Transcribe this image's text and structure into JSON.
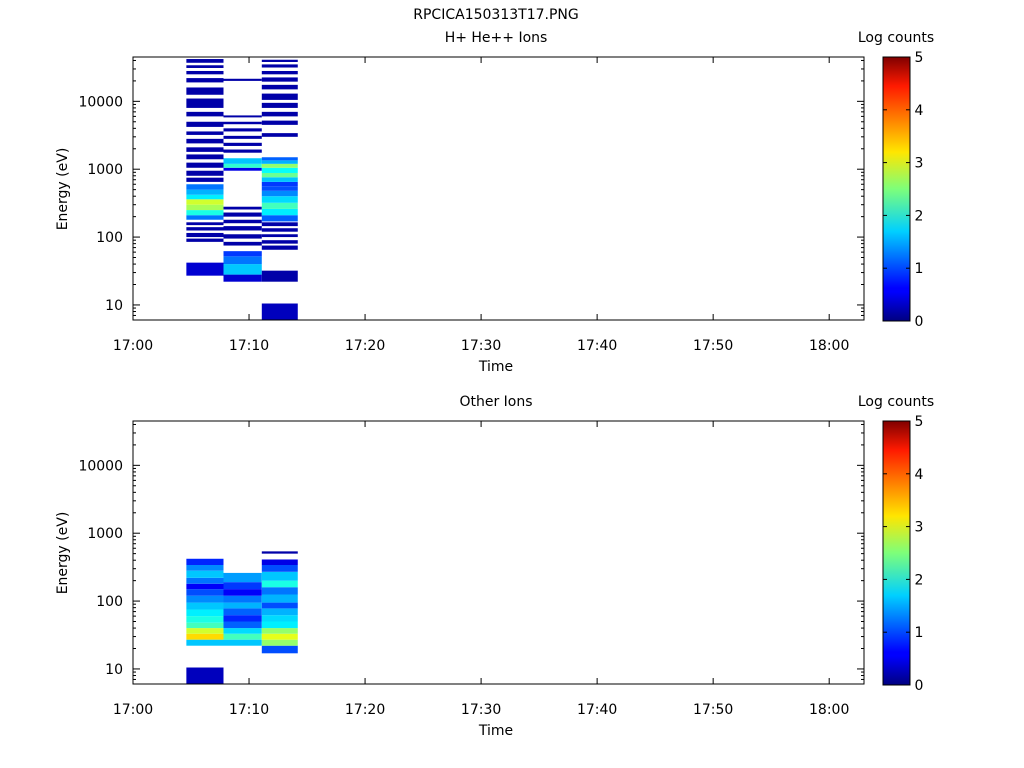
{
  "figure_title": "RPCICA150313T17.PNG",
  "chart_data": [
    {
      "type": "heatmap",
      "title": "H+ He++ Ions",
      "xlabel": "Time",
      "ylabel": "Energy (eV)",
      "x_ticks": [
        "17:00",
        "17:10",
        "17:20",
        "17:30",
        "17:40",
        "17:50",
        "18:00"
      ],
      "x_range": [
        "17:00",
        "18:03"
      ],
      "y_scale": "log",
      "y_ticks": [
        10,
        100,
        1000,
        10000
      ],
      "y_range": [
        6,
        45000
      ],
      "colorbar": {
        "label": "Log counts",
        "range": [
          0,
          5
        ],
        "ticks": [
          0,
          1,
          2,
          3,
          4,
          5
        ],
        "colormap": "jet"
      },
      "columns": [
        {
          "start": "17:04.6",
          "end": "17:07.8",
          "cells": [
            [
              27,
              42,
              0.4
            ],
            [
              85,
              95,
              0.2
            ],
            [
              100,
              115,
              0.2
            ],
            [
              125,
              140,
              0.2
            ],
            [
              150,
              165,
              0.2
            ],
            [
              180,
              210,
              1.2
            ],
            [
              210,
              250,
              2.0
            ],
            [
              250,
              300,
              2.7
            ],
            [
              300,
              360,
              2.9
            ],
            [
              360,
              420,
              1.8
            ],
            [
              420,
              500,
              1.5
            ],
            [
              500,
              600,
              1.2
            ],
            [
              650,
              750,
              0.2
            ],
            [
              800,
              950,
              0.2
            ],
            [
              1050,
              1250,
              0.2
            ],
            [
              1400,
              1650,
              0.2
            ],
            [
              1800,
              2100,
              0.2
            ],
            [
              2400,
              2800,
              0.2
            ],
            [
              3200,
              3600,
              0.2
            ],
            [
              4200,
              5000,
              0.2
            ],
            [
              6000,
              7000,
              0.2
            ],
            [
              8000,
              11000,
              0.2
            ],
            [
              12500,
              16000,
              0.2
            ],
            [
              19000,
              22000,
              0.2
            ],
            [
              25000,
              28000,
              0.2
            ],
            [
              31000,
              34000,
              0.2
            ],
            [
              37000,
              42000,
              0.2
            ]
          ]
        },
        {
          "start": "17:07.8",
          "end": "17:11.1",
          "cells": [
            [
              22,
              28,
              0.4
            ],
            [
              28,
              40,
              1.6
            ],
            [
              40,
              52,
              1.2
            ],
            [
              52,
              62,
              0.9
            ],
            [
              75,
              85,
              0.2
            ],
            [
              95,
              110,
              0.2
            ],
            [
              125,
              145,
              0.2
            ],
            [
              160,
              180,
              0.2
            ],
            [
              200,
              230,
              0.2
            ],
            [
              255,
              280,
              0.2
            ],
            [
              950,
              1050,
              0.5
            ],
            [
              1050,
              1200,
              2.1
            ],
            [
              1200,
              1450,
              1.6
            ],
            [
              1750,
              1950,
              0.2
            ],
            [
              2200,
              2450,
              0.2
            ],
            [
              2800,
              3100,
              0.2
            ],
            [
              3600,
              4000,
              0.2
            ],
            [
              4600,
              5000,
              0.2
            ],
            [
              5800,
              6200,
              0.2
            ],
            [
              20000,
              21500,
              0.2
            ]
          ]
        },
        {
          "start": "17:11.1",
          "end": "17:14.2",
          "cells": [
            [
              6,
              10.5,
              0.3
            ],
            [
              22,
              32,
              0.2
            ],
            [
              65,
              75,
              0.2
            ],
            [
              80,
              90,
              0.2
            ],
            [
              100,
              110,
              0.2
            ],
            [
              120,
              135,
              0.2
            ],
            [
              145,
              165,
              0.2
            ],
            [
              170,
              210,
              1.1
            ],
            [
              210,
              260,
              1.8
            ],
            [
              260,
              320,
              2.2
            ],
            [
              320,
              400,
              1.7
            ],
            [
              400,
              480,
              1.3
            ],
            [
              480,
              560,
              1.0
            ],
            [
              560,
              650,
              0.9
            ],
            [
              650,
              760,
              1.6
            ],
            [
              760,
              880,
              2.4
            ],
            [
              880,
              1050,
              1.9
            ],
            [
              1050,
              1200,
              2.6
            ],
            [
              1200,
              1350,
              1.5
            ],
            [
              1350,
              1500,
              1.1
            ],
            [
              3000,
              3400,
              0.2
            ],
            [
              4500,
              5200,
              0.2
            ],
            [
              6000,
              7000,
              0.2
            ],
            [
              8000,
              9500,
              0.2
            ],
            [
              10500,
              13000,
              0.2
            ],
            [
              15000,
              17500,
              0.2
            ],
            [
              19500,
              22500,
              0.2
            ],
            [
              25000,
              28000,
              0.2
            ],
            [
              31500,
              35000,
              0.2
            ],
            [
              38000,
              41000,
              0.2
            ]
          ]
        }
      ]
    },
    {
      "type": "heatmap",
      "title": "Other Ions",
      "xlabel": "Time",
      "ylabel": "Energy (eV)",
      "x_ticks": [
        "17:00",
        "17:10",
        "17:20",
        "17:30",
        "17:40",
        "17:50",
        "18:00"
      ],
      "x_range": [
        "17:00",
        "18:03"
      ],
      "y_scale": "log",
      "y_ticks": [
        10,
        100,
        1000,
        10000
      ],
      "y_range": [
        6,
        45000
      ],
      "colorbar": {
        "label": "Log counts",
        "range": [
          0,
          5
        ],
        "ticks": [
          0,
          1,
          2,
          3,
          4,
          5
        ],
        "colormap": "jet"
      },
      "columns": [
        {
          "start": "17:04.6",
          "end": "17:07.8",
          "cells": [
            [
              6,
              10.5,
              0.3
            ],
            [
              22,
              27,
              1.6
            ],
            [
              27,
              33,
              3.3
            ],
            [
              33,
              40,
              2.9
            ],
            [
              40,
              48,
              2.2
            ],
            [
              48,
              60,
              2.0
            ],
            [
              60,
              75,
              1.8
            ],
            [
              75,
              95,
              1.6
            ],
            [
              95,
              120,
              1.3
            ],
            [
              120,
              150,
              1.0
            ],
            [
              150,
              180,
              0.6
            ],
            [
              180,
              220,
              1.2
            ],
            [
              220,
              280,
              1.6
            ],
            [
              280,
              340,
              1.3
            ],
            [
              340,
              420,
              0.8
            ]
          ]
        },
        {
          "start": "17:07.8",
          "end": "17:11.1",
          "cells": [
            [
              22,
              27,
              1.6
            ],
            [
              27,
              33,
              2.2
            ],
            [
              33,
              40,
              1.7
            ],
            [
              40,
              50,
              1.1
            ],
            [
              50,
              62,
              0.8
            ],
            [
              62,
              78,
              1.1
            ],
            [
              78,
              95,
              1.5
            ],
            [
              95,
              120,
              1.2
            ],
            [
              120,
              150,
              0.6
            ],
            [
              150,
              190,
              0.9
            ],
            [
              190,
              260,
              1.4
            ]
          ]
        },
        {
          "start": "17:11.1",
          "end": "17:14.2",
          "cells": [
            [
              17,
              22,
              1.0
            ],
            [
              22,
              27,
              2.6
            ],
            [
              27,
              33,
              3.0
            ],
            [
              33,
              40,
              2.6
            ],
            [
              40,
              50,
              1.8
            ],
            [
              50,
              62,
              1.7
            ],
            [
              62,
              78,
              1.5
            ],
            [
              78,
              95,
              1.0
            ],
            [
              95,
              125,
              1.5
            ],
            [
              125,
              160,
              1.2
            ],
            [
              160,
              200,
              2.0
            ],
            [
              200,
              270,
              1.6
            ],
            [
              270,
              340,
              1.0
            ],
            [
              340,
              410,
              0.5
            ],
            [
              500,
              540,
              0.2
            ]
          ]
        }
      ]
    }
  ]
}
